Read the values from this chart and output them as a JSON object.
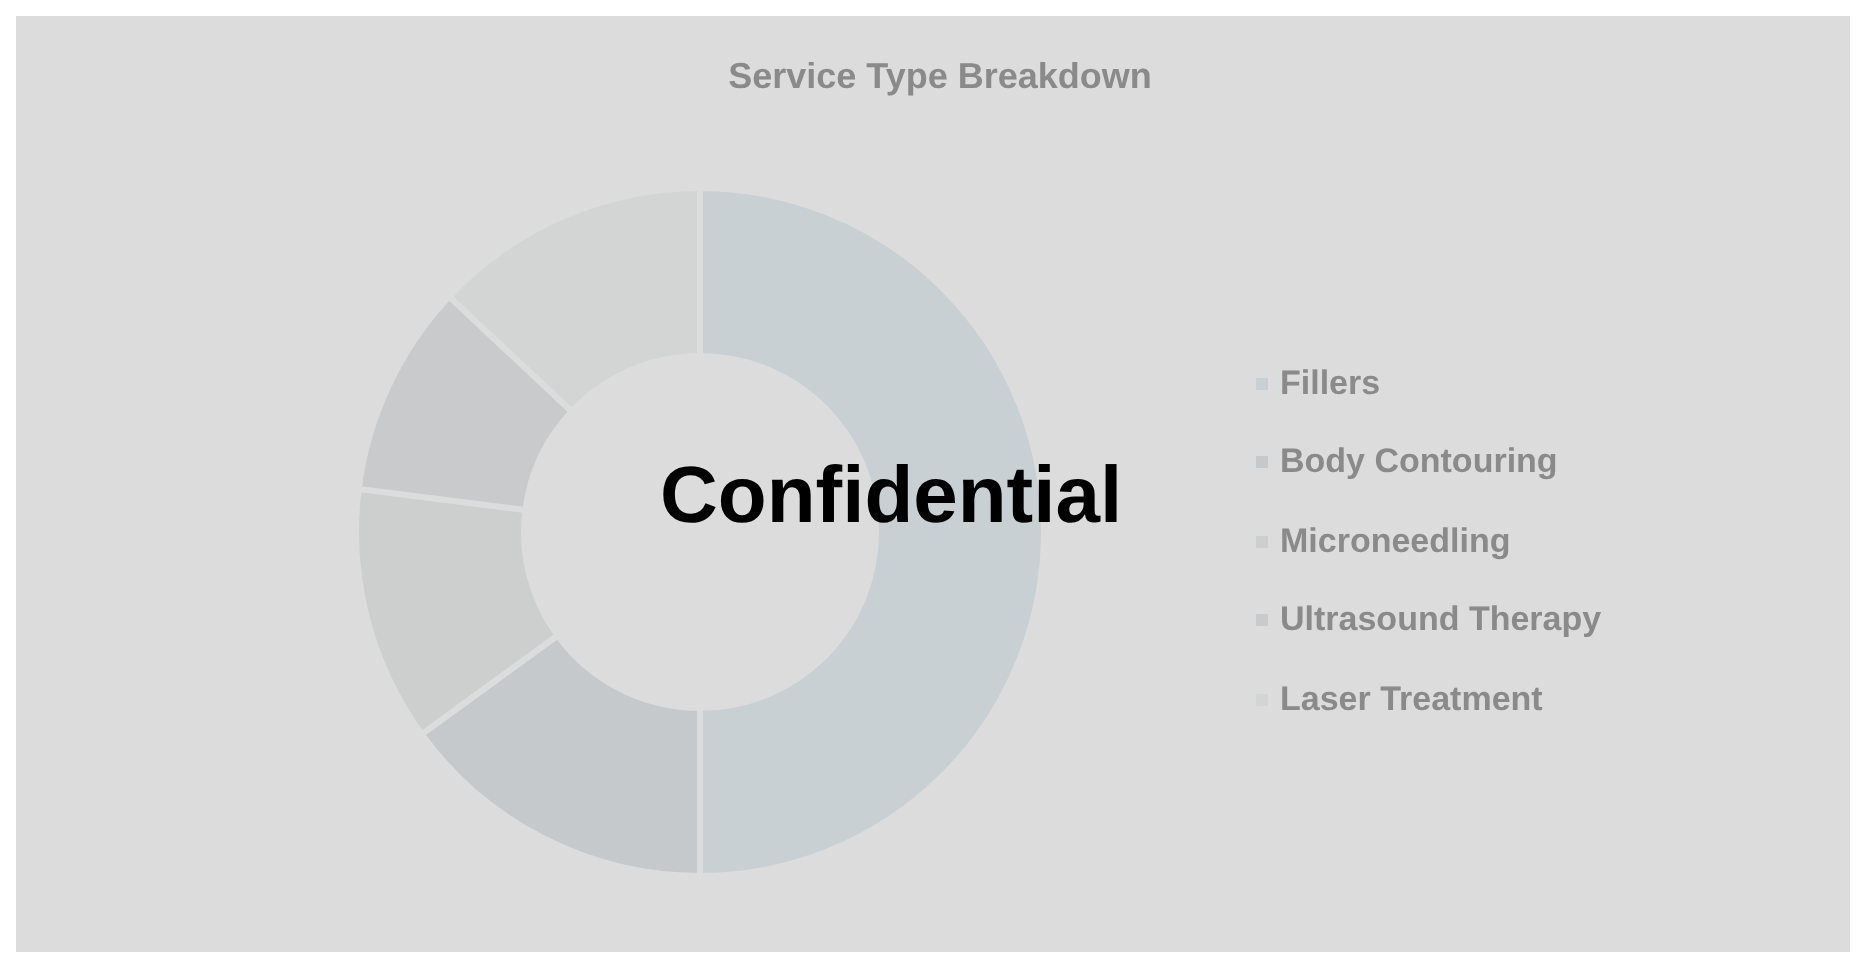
{
  "chart_data": {
    "type": "donut",
    "title": "Service Type Breakdown",
    "categories": [
      "Fillers",
      "Body Contouring",
      "Microneedling",
      "Ultrasound Therapy",
      "Laser Treatment"
    ],
    "values": [
      50,
      15,
      12,
      10,
      13
    ],
    "colors": [
      "#c8d0d3",
      "#c5c9cc",
      "#cdcfcf",
      "#c9cacc",
      "#d3d5d5"
    ],
    "legend": "right",
    "annotations": [
      "Confidential"
    ]
  }
}
